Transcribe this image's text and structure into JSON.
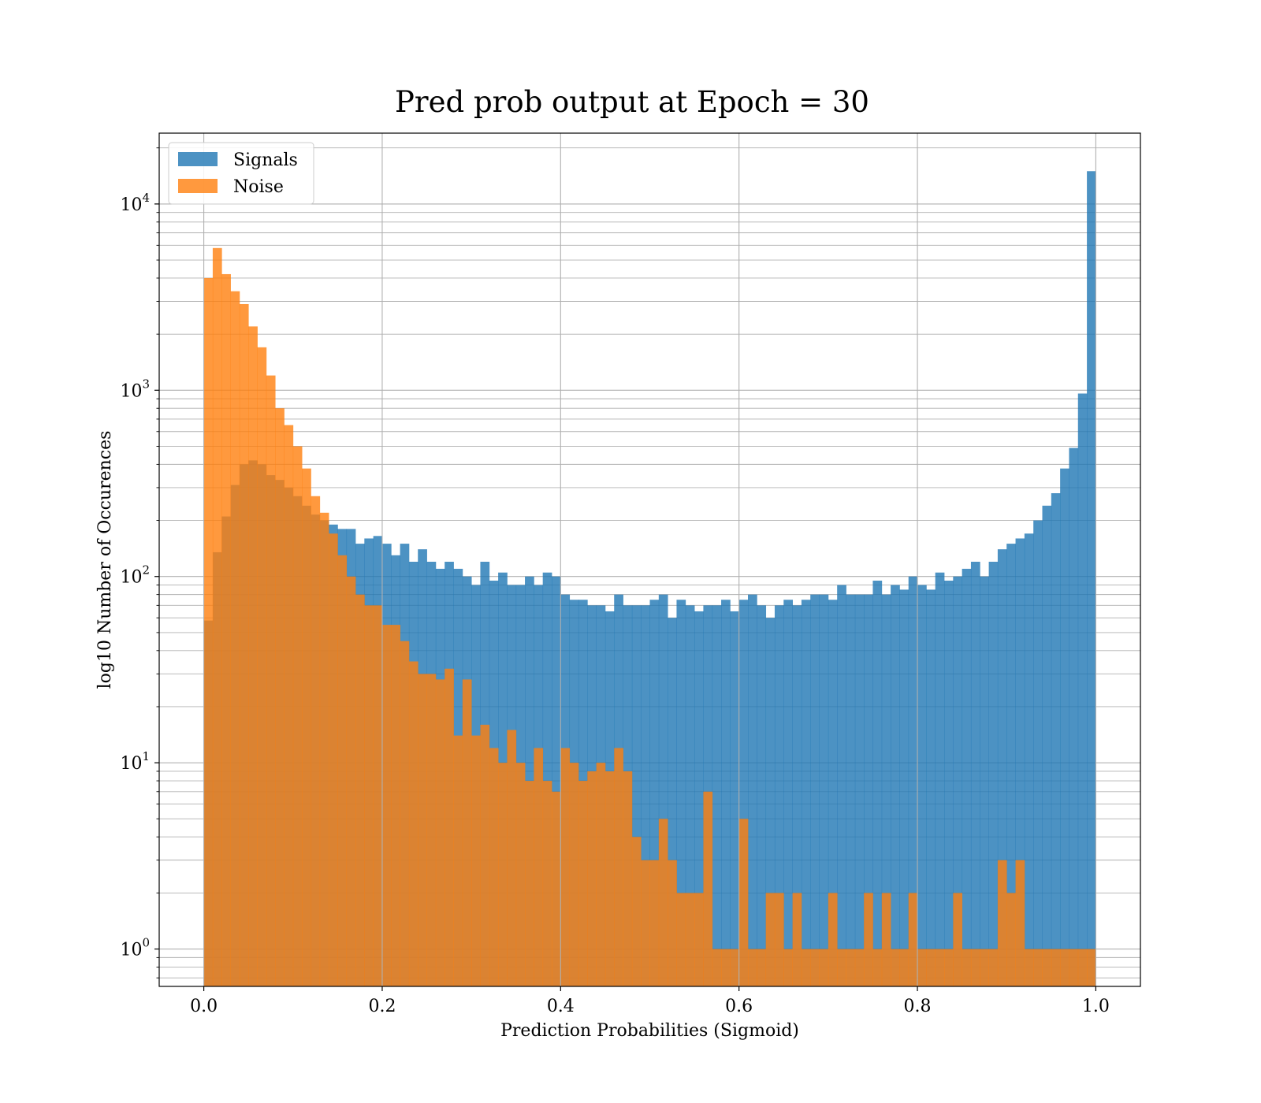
{
  "chart_data": {
    "type": "bar",
    "histogram": true,
    "title": "Pred prob output at Epoch = 30",
    "xlabel": "Prediction Probabilities (Sigmoid)",
    "ylabel": "log10 Number of Occurences",
    "xlim": [
      -0.05,
      1.05
    ],
    "ylim": [
      0.63,
      24000
    ],
    "yscale": "log",
    "grid": true,
    "legend_position": "top-left",
    "bins": {
      "start": 0.0,
      "end": 1.0,
      "count": 100
    },
    "x_ticks": [
      {
        "value": 0.0,
        "label": "0.0"
      },
      {
        "value": 0.2,
        "label": "0.2"
      },
      {
        "value": 0.4,
        "label": "0.4"
      },
      {
        "value": 0.6,
        "label": "0.6"
      },
      {
        "value": 0.8,
        "label": "0.8"
      },
      {
        "value": 1.0,
        "label": "1.0"
      }
    ],
    "y_ticks": [
      {
        "value": 1,
        "base": "10",
        "exp": "0"
      },
      {
        "value": 10,
        "base": "10",
        "exp": "1"
      },
      {
        "value": 100,
        "base": "10",
        "exp": "2"
      },
      {
        "value": 1000,
        "base": "10",
        "exp": "3"
      },
      {
        "value": 10000,
        "base": "10",
        "exp": "4"
      }
    ],
    "series": [
      {
        "name": "Signals",
        "color": "#1f77b4",
        "values": [
          58,
          135,
          210,
          310,
          400,
          420,
          400,
          350,
          330,
          300,
          270,
          240,
          215,
          200,
          190,
          180,
          180,
          150,
          160,
          165,
          150,
          130,
          150,
          120,
          140,
          120,
          110,
          120,
          110,
          100,
          90,
          120,
          95,
          105,
          90,
          90,
          100,
          90,
          105,
          100,
          80,
          75,
          75,
          70,
          70,
          65,
          80,
          70,
          70,
          70,
          75,
          80,
          60,
          75,
          70,
          65,
          70,
          70,
          75,
          65,
          75,
          80,
          70,
          60,
          70,
          75,
          70,
          75,
          80,
          80,
          75,
          90,
          80,
          80,
          80,
          95,
          80,
          90,
          85,
          100,
          90,
          85,
          105,
          95,
          100,
          110,
          120,
          100,
          120,
          140,
          150,
          160,
          170,
          200,
          240,
          280,
          380,
          490,
          960,
          15000
        ]
      },
      {
        "name": "Noise",
        "color": "#ff7f0e",
        "values": [
          4000,
          5800,
          4200,
          3400,
          2900,
          2200,
          1700,
          1200,
          800,
          650,
          500,
          380,
          270,
          220,
          170,
          130,
          100,
          80,
          70,
          70,
          55,
          55,
          45,
          35,
          30,
          30,
          28,
          32,
          14,
          28,
          14,
          16,
          12,
          10,
          15,
          10,
          8,
          12,
          8,
          7,
          12,
          10,
          8,
          9,
          10,
          9,
          12,
          9,
          4,
          3,
          3,
          5,
          3,
          2,
          2,
          2,
          7,
          1,
          1,
          1,
          5,
          1,
          1,
          2,
          2,
          1,
          2,
          1,
          1,
          1,
          2,
          1,
          1,
          1,
          2,
          1,
          2,
          1,
          1,
          2,
          1,
          1,
          1,
          1,
          2,
          1,
          1,
          1,
          1,
          3,
          2,
          3,
          1,
          1,
          1,
          1,
          1,
          1,
          1,
          1
        ]
      }
    ]
  }
}
